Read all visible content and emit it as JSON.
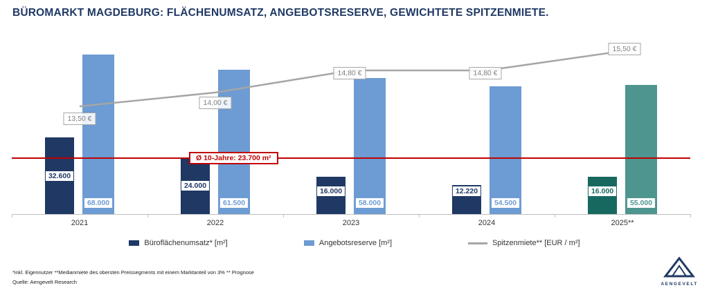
{
  "title": "BÜROMARKT MAGDEBURG: FLÄCHENUMSATZ, ANGEBOTSRESERVE, GEWICHTETE SPITZENMIETE.",
  "chart_data": {
    "type": "bar",
    "title": "BÜROMARKT MAGDEBURG: FLÄCHENUMSATZ, ANGEBOTSRESERVE, GEWICHTETE SPITZENMIETE.",
    "categories": [
      "2021",
      "2022",
      "2023",
      "2024",
      "2025**"
    ],
    "series": [
      {
        "name": "Büroflächenumsatz* [m²]",
        "type": "bar",
        "values": [
          32600,
          24000,
          16000,
          12220,
          16000
        ],
        "labels": [
          "32.600",
          "24.000",
          "16.000",
          "12.220",
          "16.000"
        ],
        "colors": [
          "#1F3864",
          "#1F3864",
          "#1F3864",
          "#1F3864",
          "#17695F"
        ]
      },
      {
        "name": "Angebotsreserve [m²]",
        "type": "bar",
        "values": [
          68000,
          61500,
          58000,
          54500,
          55000
        ],
        "labels": [
          "68.000",
          "61.500",
          "58.000",
          "54.500",
          "55.000"
        ],
        "colors": [
          "#6D9BD3",
          "#6D9BD3",
          "#6D9BD3",
          "#6D9BD3",
          "#4E948F"
        ]
      },
      {
        "name": "Spitzenmiete** [EUR / m²]",
        "type": "line",
        "values": [
          13.5,
          14.0,
          14.8,
          14.8,
          15.5
        ],
        "labels": [
          "13,50 €",
          "14,00 €",
          "14,80 €",
          "14,80 €",
          "15,50 €"
        ]
      }
    ],
    "average_line": {
      "label": "Ø 10-Jahre: 23.700 m²",
      "value": 23700
    },
    "ylim": [
      0,
      73000
    ],
    "line_axis": {
      "min": 9.6,
      "max": 15.8
    },
    "grid": false,
    "legend_position": "bottom"
  },
  "colors": {
    "umsatz": "#1F3864",
    "reserve": "#6D9BD3",
    "umsatz_2025": "#17695F",
    "reserve_2025": "#4E948F",
    "spitzenmiete_line": "#A6A6A6",
    "average_line": "#C00000",
    "title": "#1F3864",
    "axis": "#BFBFBF"
  },
  "footnotes": [
    "*inkl. Eigennutzer **Medianmiete des obersten Preissegments mit einem Marktanteil von 3% ** Prognose",
    "Quelle: Aengevelt Research"
  ],
  "logo": {
    "text": "AENGEVELT"
  }
}
